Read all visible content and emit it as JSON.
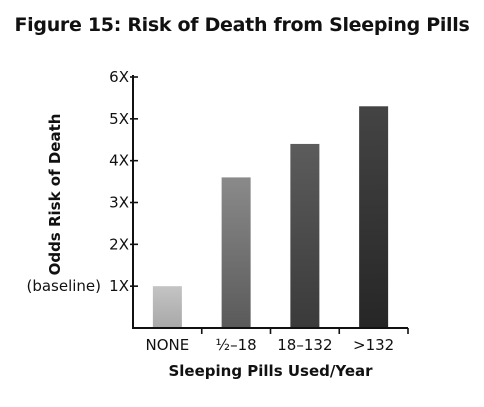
{
  "chart_data": {
    "type": "bar",
    "title": "Figure 15: Risk of Death from Sleeping Pills",
    "xlabel": "Sleeping Pills Used/Year",
    "ylabel": "Odds Risk of Death",
    "categories": [
      "NONE",
      "½–18",
      "18–132",
      ">132"
    ],
    "values": [
      1.0,
      3.6,
      4.4,
      5.3
    ],
    "ylim": [
      0,
      6
    ],
    "yticks": [
      {
        "value": 1,
        "label": "1X"
      },
      {
        "value": 2,
        "label": "2X"
      },
      {
        "value": 3,
        "label": "3X"
      },
      {
        "value": 4,
        "label": "4X"
      },
      {
        "value": 5,
        "label": "5X"
      },
      {
        "value": 6,
        "label": "6X"
      }
    ],
    "baseline_label": "(baseline)",
    "bar_colors": [
      "#b8b8b8",
      "#6f6f6f",
      "#4a4a4a",
      "#333333"
    ],
    "grid": false
  }
}
